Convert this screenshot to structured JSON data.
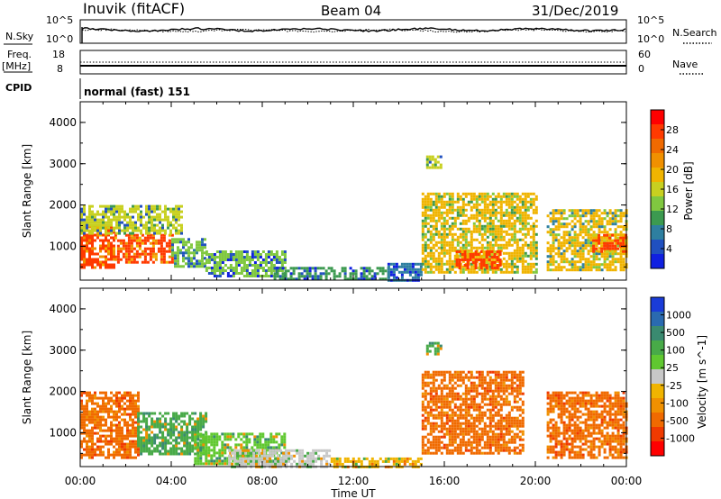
{
  "header": {
    "station": "Inuvik (fitACF)",
    "beam": "Beam 04",
    "date": "31/Dec/2019"
  },
  "strips": {
    "nsky_label": "N.Sky",
    "nsearch_label": "N.Search",
    "nsky_ticks": [
      "10^5",
      "10^0"
    ],
    "nsearch_ticks": [
      "10^5",
      "10^0"
    ],
    "freq_label": "Freq.",
    "freq_unit": "[MHz]",
    "freq_ticks": [
      "18",
      "8"
    ],
    "nave_label": "Nave",
    "nave_ticks": [
      "60",
      "0"
    ],
    "cpid_label": "CPID",
    "cpid_value": "normal (fast) 151"
  },
  "axes": {
    "ylabel": "Slant Range [km]",
    "xlabel": "Time UT",
    "yticks": [
      "1000",
      "2000",
      "3000",
      "4000"
    ],
    "xticks": [
      "00:00",
      "04:00",
      "08:00",
      "12:00",
      "16:00",
      "20:00",
      "00:00"
    ]
  },
  "colorbars": {
    "power_label": "Power [dB]",
    "power_ticks": [
      "28",
      "24",
      "20",
      "16",
      "12",
      "8",
      "4"
    ],
    "power_colors": [
      "#ff0000",
      "#ff3a00",
      "#f06a00",
      "#f09000",
      "#f0b400",
      "#c8d020",
      "#80c840",
      "#3c9a50",
      "#2e7fa0",
      "#2050c0",
      "#1020e0"
    ],
    "velocity_label": "Velocity [m s^-1]",
    "velocity_ticks": [
      "1000",
      "500",
      "100",
      "25",
      "-25",
      "-100",
      "-500",
      "-1000"
    ],
    "velocity_colors": [
      "#1a3cd8",
      "#2a6ab0",
      "#3a8a70",
      "#48aa48",
      "#60c830",
      "#c8c8c8",
      "#f0b400",
      "#f09000",
      "#f06a00",
      "#f03a00",
      "#ff0000"
    ]
  },
  "chart_data": [
    {
      "type": "heatmap",
      "panel": "power",
      "xlabel": "Time UT",
      "ylabel": "Slant Range [km]",
      "xlim": [
        0,
        24
      ],
      "ylim": [
        180,
        4500
      ],
      "x_unit": "hours UT",
      "colorbar": "Power [dB]",
      "regions": [
        {
          "t0": 0.0,
          "t1": 1.5,
          "r0": 500,
          "r1": 1500,
          "value": 28
        },
        {
          "t0": 1.5,
          "t1": 4.0,
          "r0": 600,
          "r1": 1300,
          "value": 28
        },
        {
          "t0": 0.0,
          "t1": 4.5,
          "r0": 1300,
          "r1": 2000,
          "value": 16
        },
        {
          "t0": 4.0,
          "t1": 5.5,
          "r0": 500,
          "r1": 1200,
          "value": 14
        },
        {
          "t0": 5.5,
          "t1": 9.0,
          "r0": 250,
          "r1": 900,
          "value": 12
        },
        {
          "t0": 8.5,
          "t1": 13.5,
          "r0": 200,
          "r1": 500,
          "value": 10
        },
        {
          "t0": 13.5,
          "t1": 15.0,
          "r0": 200,
          "r1": 600,
          "value": 8
        },
        {
          "t0": 15.0,
          "t1": 20.0,
          "r0": 400,
          "r1": 2300,
          "value": 20
        },
        {
          "t0": 16.5,
          "t1": 18.5,
          "r0": 500,
          "r1": 900,
          "value": 26
        },
        {
          "t0": 15.2,
          "t1": 15.8,
          "r0": 2900,
          "r1": 3200,
          "value": 16
        },
        {
          "t0": 20.5,
          "t1": 24.0,
          "r0": 400,
          "r1": 1900,
          "value": 18
        },
        {
          "t0": 22.5,
          "t1": 24.0,
          "r0": 900,
          "r1": 1300,
          "value": 26
        }
      ]
    },
    {
      "type": "heatmap",
      "panel": "velocity",
      "xlabel": "Time UT",
      "ylabel": "Slant Range [km]",
      "xlim": [
        0,
        24
      ],
      "ylim": [
        180,
        4500
      ],
      "x_unit": "hours UT",
      "colorbar": "Velocity [m s^-1]",
      "regions": [
        {
          "t0": 0.0,
          "t1": 2.5,
          "r0": 400,
          "r1": 2000,
          "value": -300
        },
        {
          "t0": 2.5,
          "t1": 5.5,
          "r0": 500,
          "r1": 1500,
          "value": 100
        },
        {
          "t0": 5.0,
          "t1": 9.0,
          "r0": 250,
          "r1": 1000,
          "value": 50
        },
        {
          "t0": 6.5,
          "t1": 11.0,
          "r0": 200,
          "r1": 600,
          "value": 0
        },
        {
          "t0": 11.0,
          "t1": 15.0,
          "r0": 200,
          "r1": 400,
          "value": -50
        },
        {
          "t0": 15.0,
          "t1": 19.5,
          "r0": 500,
          "r1": 2500,
          "value": -300
        },
        {
          "t0": 15.2,
          "t1": 15.8,
          "r0": 2900,
          "r1": 3200,
          "value": 100
        },
        {
          "t0": 20.5,
          "t1": 24.0,
          "r0": 400,
          "r1": 2000,
          "value": -300
        }
      ]
    }
  ]
}
